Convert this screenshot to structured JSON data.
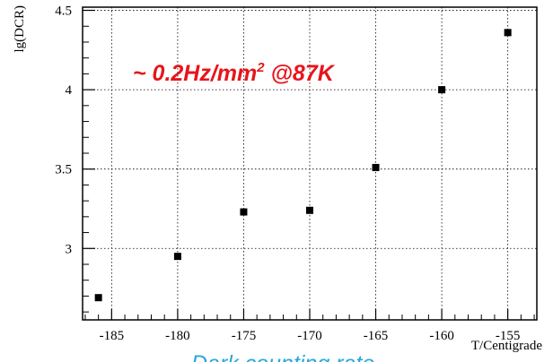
{
  "chart_data": {
    "type": "scatter",
    "title": "",
    "xlabel": "T/Centigrade",
    "ylabel": "lg(DCR)",
    "xlim": [
      -187.2,
      -152.8
    ],
    "ylim": [
      2.55,
      4.52
    ],
    "x_ticks": [
      -185,
      -180,
      -175,
      -170,
      -165,
      -160,
      -155
    ],
    "x_tick_labels": [
      "-185",
      "-180",
      "-175",
      "-170",
      "-165",
      "-160",
      "-155"
    ],
    "y_ticks": [
      3,
      3.5,
      4,
      4.5
    ],
    "y_tick_labels": [
      "3",
      "3.5",
      "4",
      "4.5"
    ],
    "grid": true,
    "series": [
      {
        "marker": "square",
        "color": "#000000",
        "x": [
          -186,
          -180,
          -175,
          -170,
          -165,
          -160,
          -155
        ],
        "y": [
          2.69,
          2.95,
          3.23,
          3.24,
          3.51,
          4.0,
          4.36
        ]
      }
    ],
    "annotation": {
      "text_prefix": "~ 0.2Hz/mm",
      "superscript": "2",
      "text_suffix": " @87K",
      "color": "#e8141b"
    },
    "footer": {
      "text": "Dark counting rate",
      "color": "#29a8d8"
    }
  }
}
